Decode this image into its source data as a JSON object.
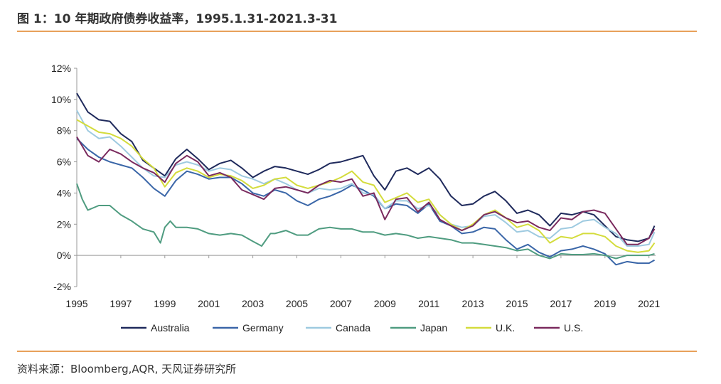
{
  "header": {
    "title": "图 1：10 年期政府债券收益率，1995.1.31-2021.3-31"
  },
  "footer": {
    "source": "资料来源：Bloomberg,AQR, 天风证券研究所"
  },
  "chart_data": {
    "type": "line",
    "title": "图 1：10 年期政府债券收益率，1995.1.31-2021.3-31",
    "xlabel": "",
    "ylabel": "",
    "xlim": [
      1995,
      2021.3
    ],
    "ylim": [
      -2,
      12
    ],
    "y_ticks": [
      -2,
      0,
      2,
      4,
      6,
      8,
      10,
      12
    ],
    "y_tick_labels": [
      "-2%",
      "0%",
      "2%",
      "4%",
      "6%",
      "8%",
      "10%",
      "12%"
    ],
    "x_ticks": [
      1995,
      1997,
      1999,
      2001,
      2003,
      2005,
      2007,
      2009,
      2011,
      2013,
      2015,
      2017,
      2019,
      2021
    ],
    "x_tick_labels": [
      "1995",
      "1997",
      "1999",
      "2001",
      "2003",
      "2005",
      "2007",
      "2009",
      "2011",
      "2013",
      "2015",
      "2017",
      "2019",
      "2021"
    ],
    "legend_position": "bottom",
    "series": [
      {
        "name": "Australia",
        "color": "#1f2a5c",
        "x": [
          1995,
          1995.5,
          1996,
          1996.5,
          1997,
          1997.5,
          1998,
          1998.5,
          1999,
          1999.5,
          2000,
          2000.5,
          2001,
          2001.5,
          2002,
          2002.5,
          2003,
          2003.5,
          2004,
          2004.5,
          2005,
          2005.5,
          2006,
          2006.5,
          2007,
          2007.5,
          2008,
          2008.5,
          2009,
          2009.5,
          2010,
          2010.5,
          2011,
          2011.5,
          2012,
          2012.5,
          2013,
          2013.5,
          2014,
          2014.5,
          2015,
          2015.5,
          2016,
          2016.5,
          2017,
          2017.5,
          2018,
          2018.5,
          2019,
          2019.5,
          2020,
          2020.5,
          2021,
          2021.25
        ],
        "values": [
          10.4,
          9.2,
          8.7,
          8.6,
          7.8,
          7.3,
          6.1,
          5.6,
          5.1,
          6.2,
          6.8,
          6.2,
          5.5,
          5.9,
          6.1,
          5.6,
          5.0,
          5.4,
          5.7,
          5.6,
          5.4,
          5.2,
          5.5,
          5.9,
          6.0,
          6.2,
          6.4,
          5.1,
          4.2,
          5.4,
          5.6,
          5.2,
          5.6,
          4.9,
          3.8,
          3.2,
          3.3,
          3.8,
          4.1,
          3.5,
          2.7,
          2.9,
          2.6,
          1.9,
          2.7,
          2.6,
          2.8,
          2.6,
          1.9,
          1.2,
          1.0,
          0.9,
          1.1,
          1.9
        ]
      },
      {
        "name": "Germany",
        "color": "#3a66a8",
        "x": [
          1995,
          1995.5,
          1996,
          1996.5,
          1997,
          1997.5,
          1998,
          1998.5,
          1999,
          1999.5,
          2000,
          2000.5,
          2001,
          2001.5,
          2002,
          2002.5,
          2003,
          2003.5,
          2004,
          2004.5,
          2005,
          2005.5,
          2006,
          2006.5,
          2007,
          2007.5,
          2008,
          2008.5,
          2009,
          2009.5,
          2010,
          2010.5,
          2011,
          2011.5,
          2012,
          2012.5,
          2013,
          2013.5,
          2014,
          2014.5,
          2015,
          2015.5,
          2016,
          2016.5,
          2017,
          2017.5,
          2018,
          2018.5,
          2019,
          2019.5,
          2020,
          2020.5,
          2021,
          2021.25
        ],
        "values": [
          7.5,
          6.8,
          6.3,
          6.0,
          5.8,
          5.6,
          5.0,
          4.3,
          3.8,
          4.8,
          5.4,
          5.2,
          4.9,
          5.0,
          5.0,
          4.6,
          4.0,
          3.8,
          4.2,
          4.0,
          3.5,
          3.2,
          3.6,
          3.8,
          4.1,
          4.5,
          4.2,
          3.8,
          3.0,
          3.3,
          3.2,
          2.7,
          3.3,
          2.2,
          1.9,
          1.4,
          1.5,
          1.8,
          1.7,
          1.0,
          0.4,
          0.7,
          0.2,
          -0.1,
          0.3,
          0.4,
          0.6,
          0.4,
          0.1,
          -0.6,
          -0.4,
          -0.5,
          -0.5,
          -0.3
        ]
      },
      {
        "name": "Canada",
        "color": "#9ecae0",
        "x": [
          1995,
          1995.5,
          1996,
          1996.5,
          1997,
          1997.5,
          1998,
          1998.5,
          1999,
          1999.5,
          2000,
          2000.5,
          2001,
          2001.5,
          2002,
          2002.5,
          2003,
          2003.5,
          2004,
          2004.5,
          2005,
          2005.5,
          2006,
          2006.5,
          2007,
          2007.5,
          2008,
          2008.5,
          2009,
          2009.5,
          2010,
          2010.5,
          2011,
          2011.5,
          2012,
          2012.5,
          2013,
          2013.5,
          2014,
          2014.5,
          2015,
          2015.5,
          2016,
          2016.5,
          2017,
          2017.5,
          2018,
          2018.5,
          2019,
          2019.5,
          2020,
          2020.5,
          2021,
          2021.25
        ],
        "values": [
          9.3,
          8.0,
          7.5,
          7.6,
          7.0,
          6.3,
          5.6,
          5.1,
          5.0,
          5.8,
          6.0,
          5.8,
          5.4,
          5.6,
          5.5,
          5.1,
          4.9,
          4.6,
          4.9,
          4.6,
          4.2,
          4.0,
          4.3,
          4.2,
          4.3,
          4.6,
          4.0,
          3.9,
          3.0,
          3.5,
          3.5,
          3.0,
          3.2,
          2.6,
          2.0,
          1.8,
          1.9,
          2.5,
          2.6,
          2.1,
          1.5,
          1.6,
          1.2,
          1.1,
          1.7,
          1.8,
          2.2,
          2.3,
          1.8,
          1.4,
          0.6,
          0.6,
          0.7,
          1.5
        ]
      },
      {
        "name": "Japan",
        "color": "#4f9c80",
        "x": [
          1995,
          1995.25,
          1995.5,
          1996,
          1996.5,
          1997,
          1997.5,
          1998,
          1998.5,
          1998.8,
          1999,
          1999.25,
          1999.5,
          2000,
          2000.5,
          2001,
          2001.5,
          2002,
          2002.5,
          2003,
          2003.4,
          2003.8,
          2004,
          2004.5,
          2005,
          2005.5,
          2006,
          2006.5,
          2007,
          2007.5,
          2008,
          2008.5,
          2009,
          2009.5,
          2010,
          2010.5,
          2011,
          2011.5,
          2012,
          2012.5,
          2013,
          2013.5,
          2014,
          2014.5,
          2015,
          2015.5,
          2016,
          2016.5,
          2017,
          2017.5,
          2018,
          2018.5,
          2019,
          2019.5,
          2020,
          2020.5,
          2021,
          2021.25
        ],
        "values": [
          4.6,
          3.6,
          2.9,
          3.2,
          3.2,
          2.6,
          2.2,
          1.7,
          1.5,
          0.8,
          1.8,
          2.2,
          1.8,
          1.8,
          1.7,
          1.4,
          1.3,
          1.4,
          1.3,
          0.9,
          0.6,
          1.4,
          1.4,
          1.6,
          1.3,
          1.3,
          1.7,
          1.8,
          1.7,
          1.7,
          1.5,
          1.5,
          1.3,
          1.4,
          1.3,
          1.1,
          1.2,
          1.1,
          1.0,
          0.8,
          0.8,
          0.7,
          0.6,
          0.5,
          0.3,
          0.4,
          0.0,
          -0.2,
          0.1,
          0.05,
          0.05,
          0.1,
          0.0,
          -0.2,
          0.0,
          0.0,
          0.0,
          0.1
        ]
      },
      {
        "name": "U.K.",
        "color": "#d4dc3c",
        "x": [
          1995,
          1995.5,
          1996,
          1996.5,
          1997,
          1997.5,
          1998,
          1998.5,
          1999,
          1999.5,
          2000,
          2000.5,
          2001,
          2001.5,
          2002,
          2002.5,
          2003,
          2003.5,
          2004,
          2004.5,
          2005,
          2005.5,
          2006,
          2006.5,
          2007,
          2007.5,
          2008,
          2008.5,
          2009,
          2009.5,
          2010,
          2010.5,
          2011,
          2011.5,
          2012,
          2012.5,
          2013,
          2013.5,
          2014,
          2014.5,
          2015,
          2015.5,
          2016,
          2016.5,
          2017,
          2017.5,
          2018,
          2018.5,
          2019,
          2019.5,
          2020,
          2020.5,
          2021,
          2021.25
        ],
        "values": [
          8.7,
          8.3,
          7.9,
          7.8,
          7.5,
          7.0,
          6.2,
          5.6,
          4.4,
          5.3,
          5.6,
          5.4,
          5.0,
          5.2,
          5.1,
          4.8,
          4.3,
          4.5,
          4.9,
          5.0,
          4.5,
          4.3,
          4.5,
          4.7,
          5.0,
          5.4,
          4.7,
          4.5,
          3.4,
          3.7,
          4.0,
          3.4,
          3.6,
          2.6,
          2.0,
          1.6,
          2.0,
          2.6,
          2.9,
          2.4,
          1.8,
          2.0,
          1.6,
          0.8,
          1.2,
          1.1,
          1.4,
          1.4,
          1.2,
          0.6,
          0.3,
          0.2,
          0.3,
          0.8
        ]
      },
      {
        "name": "U.S.",
        "color": "#7a2a5e",
        "x": [
          1995,
          1995.5,
          1996,
          1996.5,
          1997,
          1997.5,
          1998,
          1998.5,
          1999,
          1999.5,
          2000,
          2000.5,
          2001,
          2001.5,
          2002,
          2002.5,
          2003,
          2003.5,
          2004,
          2004.5,
          2005,
          2005.5,
          2006,
          2006.5,
          2007,
          2007.5,
          2008,
          2008.5,
          2009,
          2009.5,
          2010,
          2010.5,
          2011,
          2011.5,
          2012,
          2012.5,
          2013,
          2013.5,
          2014,
          2014.5,
          2015,
          2015.5,
          2016,
          2016.5,
          2017,
          2017.5,
          2018,
          2018.5,
          2019,
          2019.5,
          2020,
          2020.5,
          2021,
          2021.25
        ],
        "values": [
          7.6,
          6.4,
          6.0,
          6.8,
          6.5,
          6.0,
          5.6,
          5.3,
          4.7,
          5.9,
          6.4,
          6.0,
          5.1,
          5.3,
          5.0,
          4.2,
          3.9,
          3.6,
          4.3,
          4.4,
          4.2,
          4.0,
          4.5,
          4.8,
          4.7,
          4.9,
          3.8,
          4.0,
          2.3,
          3.6,
          3.7,
          2.8,
          3.4,
          2.3,
          1.9,
          1.6,
          1.9,
          2.6,
          2.8,
          2.4,
          2.1,
          2.2,
          1.8,
          1.6,
          2.4,
          2.3,
          2.8,
          2.9,
          2.7,
          1.7,
          0.7,
          0.7,
          1.1,
          1.7
        ]
      }
    ]
  }
}
